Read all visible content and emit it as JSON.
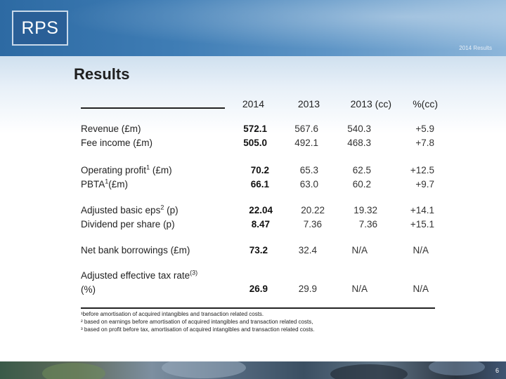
{
  "header": {
    "logo_text": "RPS",
    "tag": "2014 Results"
  },
  "title": "Results",
  "columns": [
    "2014",
    "2013",
    "2013 (cc)",
    "%(cc)"
  ],
  "rows": [
    {
      "label": "Revenue (£m)",
      "v2014": "572.1",
      "v2013": "567.6",
      "v2013cc": "540.3",
      "pct": "+5.9"
    },
    {
      "label": "Fee income (£m)",
      "v2014": "505.0",
      "v2013": "492.1",
      "v2013cc": "468.3",
      "pct": "+7.8"
    },
    {
      "label_pre": "Operating profit",
      "label_sup": "1",
      "label_post": " (£m)",
      "v2014": "70.2",
      "v2013": "65.3",
      "v2013cc": "62.5",
      "pct": "+12.5"
    },
    {
      "label_pre": "PBTA",
      "label_sup": "1",
      "label_post": "(£m)",
      "v2014": "66.1",
      "v2013": "63.0",
      "v2013cc": "60.2",
      "pct": "+9.7"
    },
    {
      "label_pre": "Adjusted basic eps",
      "label_sup": "2",
      "label_post": " (p)",
      "v2014": "22.04",
      "v2013": "20.22",
      "v2013cc": "19.32",
      "pct": "+14.1"
    },
    {
      "label": "Dividend per share (p)",
      "v2014": "8.47",
      "v2013": "7.36",
      "v2013cc": "7.36",
      "pct": "+15.1"
    },
    {
      "label": "Net bank borrowings (£m)",
      "v2014": "73.2",
      "v2013": "32.4",
      "v2013cc": "N/A",
      "pct": "N/A"
    },
    {
      "label_pre": "Adjusted effective tax rate",
      "label_sup": "(3)",
      "label_line2": " (%)",
      "v2014": "26.9",
      "v2013": "29.9",
      "v2013cc": "N/A",
      "pct": "N/A"
    }
  ],
  "footnotes": [
    "¹before amortisation of acquired intangibles and transaction related costs.",
    "² based on earnings before amortisation of acquired intangibles and transaction related costs,",
    "³ based on profit before tax, amortisation of acquired intangibles and transaction related costs."
  ],
  "page_number": "6"
}
